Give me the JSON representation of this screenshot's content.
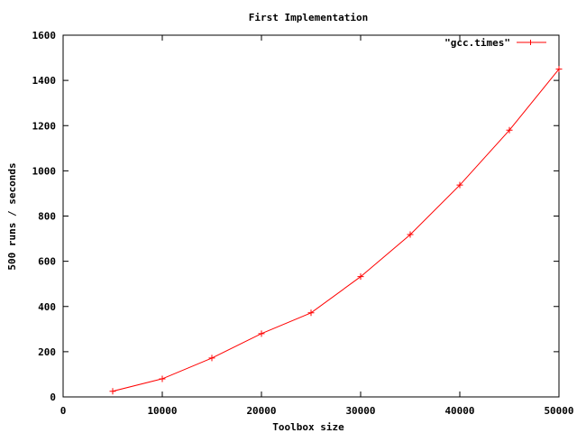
{
  "chart_data": {
    "type": "line",
    "title": "First Implementation",
    "xlabel": "Toolbox size",
    "ylabel": "500 runs / seconds",
    "xlim": [
      0,
      50000
    ],
    "ylim": [
      0,
      1600
    ],
    "x_ticks": [
      0,
      10000,
      20000,
      30000,
      40000,
      50000
    ],
    "y_ticks": [
      0,
      200,
      400,
      600,
      800,
      1000,
      1200,
      1400,
      1600
    ],
    "grid": false,
    "legend_position": "top-right",
    "series": [
      {
        "name": "\"gcc.times\"",
        "color": "#ff0000",
        "marker": "plus",
        "x": [
          5000,
          10000,
          15000,
          20000,
          25000,
          30000,
          35000,
          40000,
          45000,
          50000
        ],
        "y": [
          25,
          80,
          172,
          280,
          372,
          532,
          718,
          937,
          1180,
          1450
        ]
      }
    ]
  }
}
